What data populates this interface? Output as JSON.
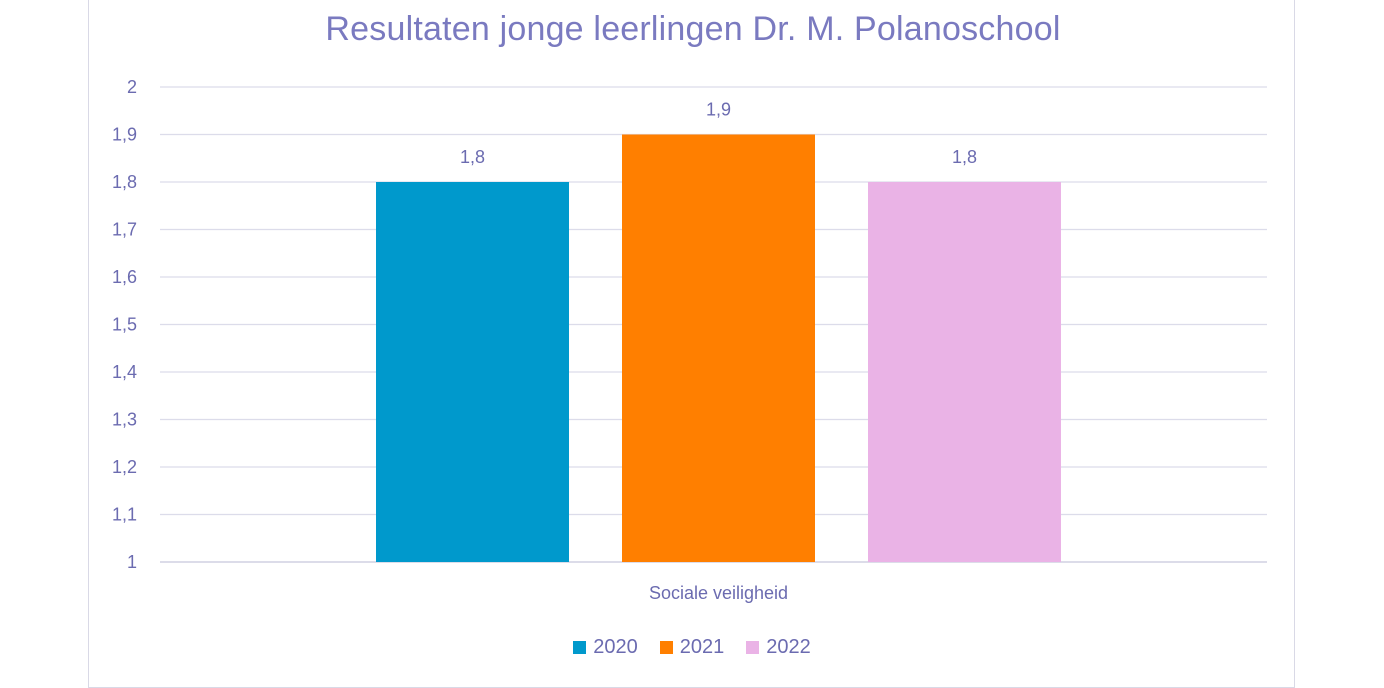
{
  "chart_data": {
    "type": "bar",
    "title": "Resultaten jonge leerlingen Dr. M. Polanoschool",
    "categories": [
      "Sociale veiligheid"
    ],
    "series": [
      {
        "name": "2020",
        "values": [
          1.8
        ],
        "label": "1,8",
        "color": "#0099cc"
      },
      {
        "name": "2021",
        "values": [
          1.9
        ],
        "label": "1,9",
        "color": "#ff7f00"
      },
      {
        "name": "2022",
        "values": [
          1.8
        ],
        "label": "1,8",
        "color": "#eab3e6"
      }
    ],
    "ylim": [
      1,
      2
    ],
    "yticks": [
      {
        "value": 1.0,
        "label": "1"
      },
      {
        "value": 1.1,
        "label": "1,1"
      },
      {
        "value": 1.2,
        "label": "1,2"
      },
      {
        "value": 1.3,
        "label": "1,3"
      },
      {
        "value": 1.4,
        "label": "1,4"
      },
      {
        "value": 1.5,
        "label": "1,5"
      },
      {
        "value": 1.6,
        "label": "1,6"
      },
      {
        "value": 1.7,
        "label": "1,7"
      },
      {
        "value": 1.8,
        "label": "1,8"
      },
      {
        "value": 1.9,
        "label": "1,9"
      },
      {
        "value": 2.0,
        "label": "2"
      }
    ],
    "grid": true,
    "legend_position": "bottom"
  }
}
